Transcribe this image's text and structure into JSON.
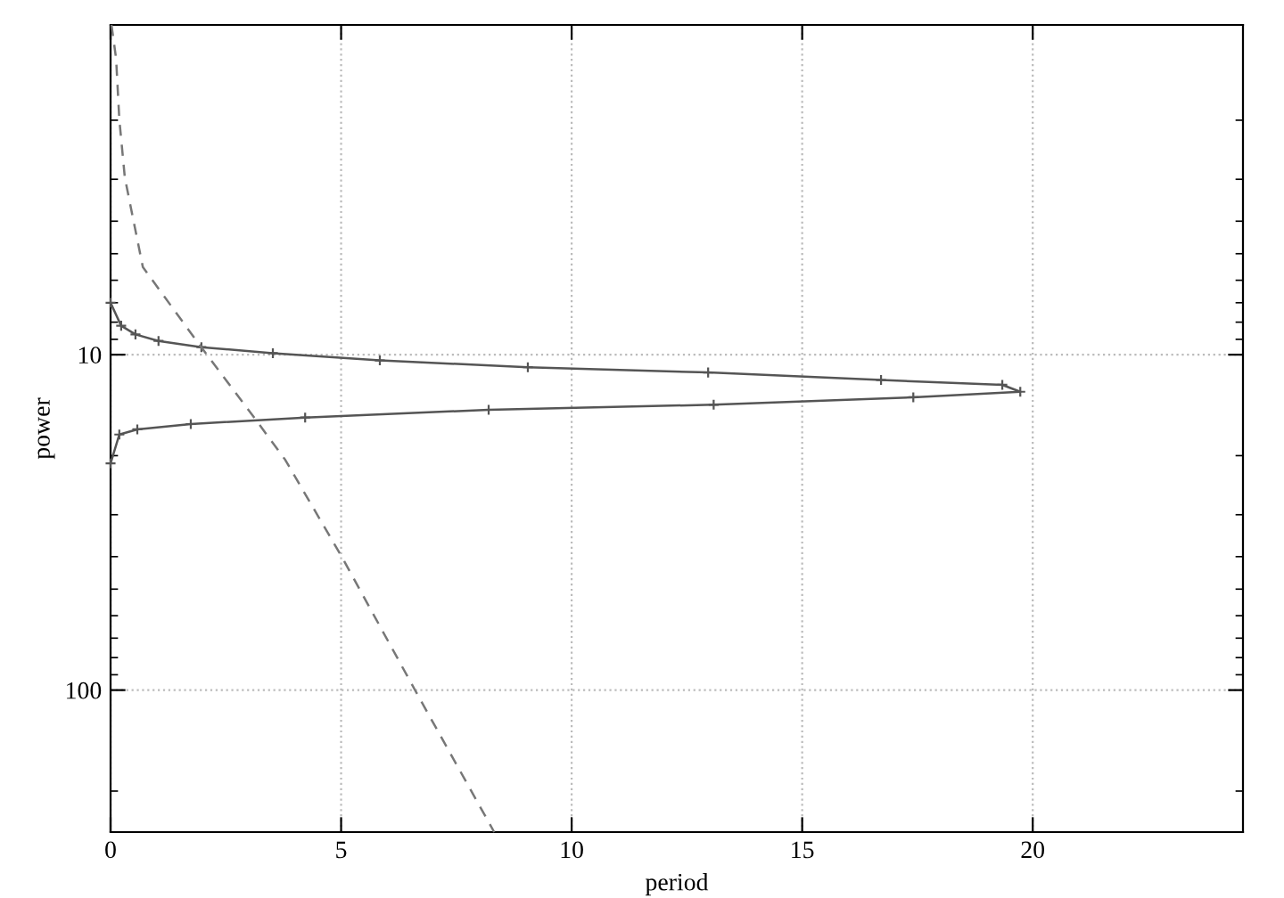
{
  "chart_data": {
    "type": "line",
    "xlabel": "period",
    "ylabel": "power",
    "log": "y",
    "grid": true,
    "xlim": [
      0,
      24.56
    ],
    "xticks": [
      0,
      5,
      10,
      15,
      20
    ],
    "ylim": [
      265,
      1.04
    ],
    "yticks": [
      10,
      100
    ],
    "series": [
      {
        "color": "#555555",
        "marker": "cross",
        "line_style": "solid",
        "x": [
          0,
          0.23,
          0.54,
          1.04,
          1.97,
          3.52,
          5.84,
          9.05,
          12.96,
          16.71,
          19.34,
          19.73,
          17.41,
          13.08,
          8.2,
          4.22,
          1.74,
          0.58,
          0.19,
          0
        ],
        "values": [
          7.0,
          8.2,
          8.7,
          9.1,
          9.5,
          9.9,
          10.4,
          10.9,
          11.3,
          11.9,
          12.3,
          12.9,
          13.4,
          14.1,
          14.6,
          15.4,
          16.1,
          16.7,
          17.3,
          21.1
        ]
      },
      {
        "color": "#777777",
        "marker": "none",
        "line_style": "dashed",
        "x": [
          0.02,
          0.12,
          0.19,
          0.31,
          0.7,
          1.97,
          3.13,
          3.79,
          5.03,
          6.62,
          8.32
        ],
        "values": [
          1.04,
          1.31,
          1.99,
          2.97,
          5.48,
          9.52,
          15.5,
          20.6,
          40.4,
          101,
          265
        ]
      }
    ]
  }
}
